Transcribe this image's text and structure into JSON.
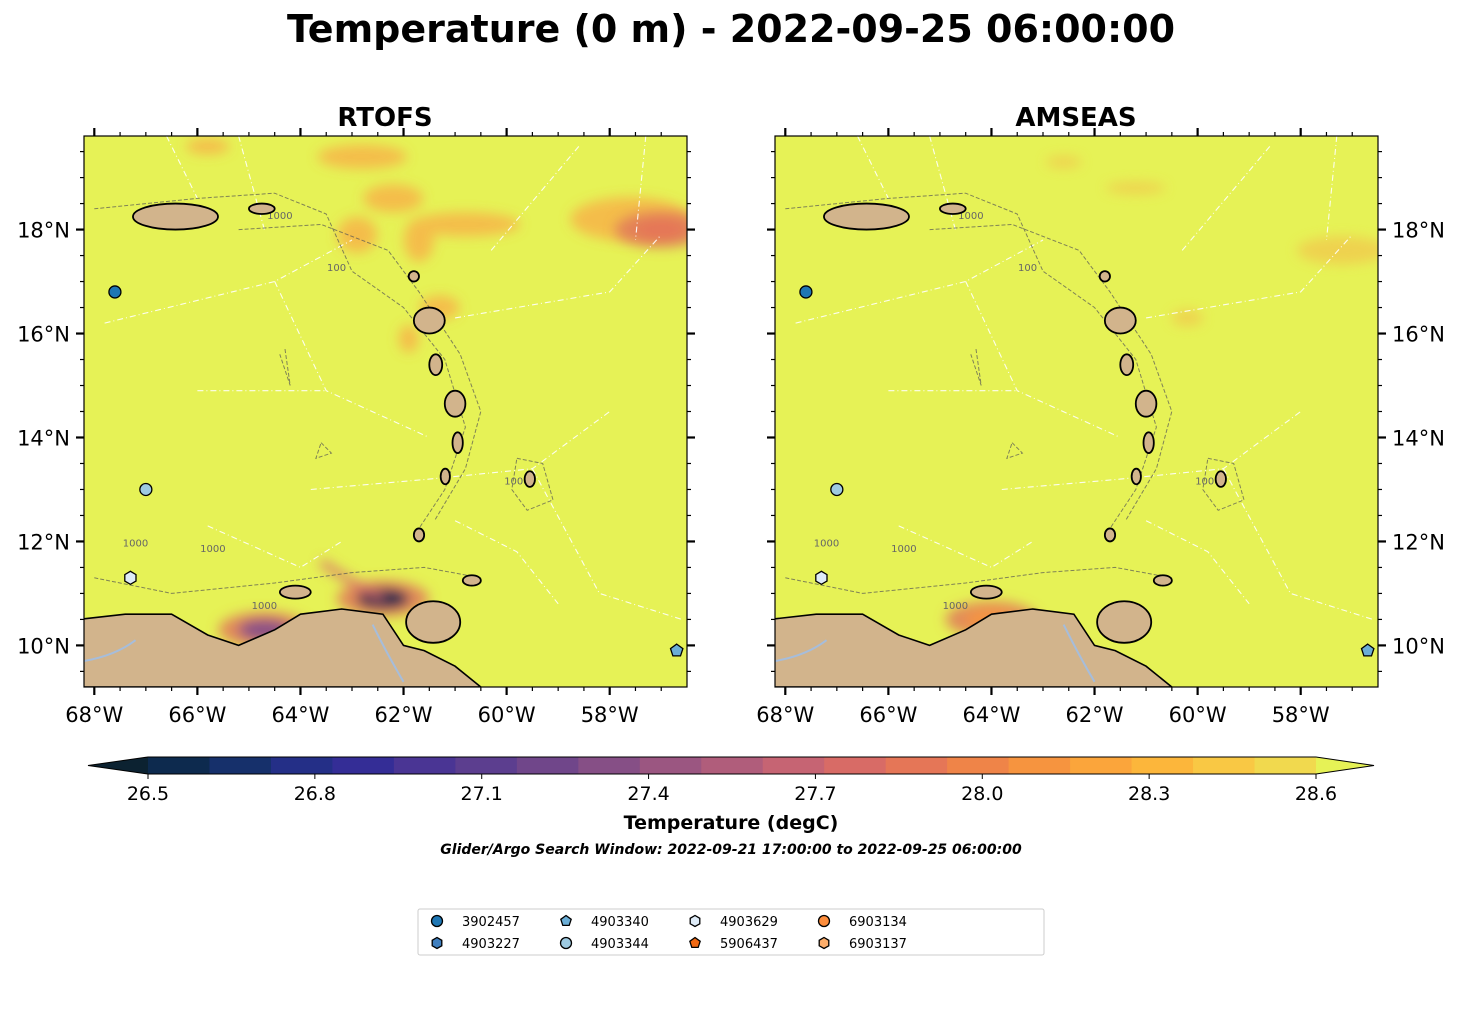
{
  "figure": {
    "title": "Temperature (0 m) - 2022-09-25 06:00:00",
    "search_window": "Glider/Argo Search Window: 2022-09-21 17:00:00 to 2022-09-25 06:00:00"
  },
  "chart_data": [
    {
      "type": "heatmap",
      "title": "RTOFS",
      "xlim": [
        -68.2,
        -56.5
      ],
      "ylim": [
        9.2,
        19.8
      ],
      "x_ticks": [
        -68,
        -66,
        -64,
        -62,
        -60,
        -58
      ],
      "x_tick_labels": [
        "68°W",
        "66°W",
        "64°W",
        "62°W",
        "60°W",
        "58°W"
      ],
      "y_ticks": [
        10,
        12,
        14,
        16,
        18
      ],
      "y_tick_labels": [
        "10°N",
        "12°N",
        "14°N",
        "16°N",
        "18°N"
      ],
      "y_tick_side": "left",
      "contour_labels": [
        "1000",
        "100",
        "1000",
        "1000",
        "1000",
        "1000"
      ],
      "cool_anomalies": [
        {
          "lon": -62.4,
          "lat": 10.9,
          "value": 26.5
        },
        {
          "lon": -64.7,
          "lat": 10.3,
          "value": 27.3
        },
        {
          "lon": -57.0,
          "lat": 18.0,
          "value": 27.8
        }
      ]
    },
    {
      "type": "heatmap",
      "title": "AMSEAS",
      "xlim": [
        -68.2,
        -56.5
      ],
      "ylim": [
        9.2,
        19.8
      ],
      "x_ticks": [
        -68,
        -66,
        -64,
        -62,
        -60,
        -58
      ],
      "x_tick_labels": [
        "68°W",
        "66°W",
        "64°W",
        "62°W",
        "60°W",
        "58°W"
      ],
      "y_ticks": [
        10,
        12,
        14,
        16,
        18
      ],
      "y_tick_labels": [
        "10°N",
        "12°N",
        "14°N",
        "16°N",
        "18°N"
      ],
      "y_tick_side": "right",
      "contour_labels": [
        "1000",
        "100",
        "1000",
        "1000",
        "1000",
        "1000"
      ],
      "cool_anomalies": [
        {
          "lon": -64.0,
          "lat": 10.5,
          "value": 28.0
        }
      ]
    }
  ],
  "observations": [
    {
      "id": "3902457",
      "marker": "circle",
      "color": "#1f77b4",
      "lon": -67.6,
      "lat": 16.8
    },
    {
      "id": "4903344",
      "marker": "circle",
      "color": "#9ecae1",
      "lon": -67.0,
      "lat": 13.0
    },
    {
      "id": "4903629",
      "marker": "hexagon",
      "color": "#deebf7",
      "lon": -67.3,
      "lat": 11.3
    },
    {
      "id": "4903340",
      "marker": "pentagon",
      "color": "#6baed6",
      "lon": -56.7,
      "lat": 9.9
    }
  ],
  "colorbar": {
    "label": "Temperature (degC)",
    "min": 26.4,
    "max": 28.6,
    "tick_values": [
      26.5,
      26.8,
      27.1,
      27.4,
      27.7,
      28.0,
      28.3,
      28.6
    ],
    "tick_labels": [
      "26.5",
      "26.8",
      "27.1",
      "27.4",
      "27.7",
      "28.0",
      "28.3",
      "28.6"
    ],
    "colors": [
      "#0c2231",
      "#0d2a4e",
      "#16306b",
      "#242f87",
      "#342d96",
      "#4a3594",
      "#5c3e8f",
      "#70468a",
      "#864f86",
      "#9b5681",
      "#b05d7b",
      "#c66473",
      "#d86b66",
      "#e57657",
      "#ef8448",
      "#f6943f",
      "#fba53b",
      "#fcb63b",
      "#f9c844",
      "#f1d94e",
      "#e6f256"
    ]
  },
  "legend": {
    "entries": [
      {
        "label": "3902457",
        "marker": "circle",
        "color": "#1f77b4"
      },
      {
        "label": "4903227",
        "marker": "hexagon",
        "color": "#3f7fbf"
      },
      {
        "label": "4903340",
        "marker": "pentagon",
        "color": "#6baed6"
      },
      {
        "label": "4903344",
        "marker": "circle",
        "color": "#9ecae1"
      },
      {
        "label": "4903629",
        "marker": "hexagon",
        "color": "#deebf7"
      },
      {
        "label": "5906437",
        "marker": "pentagon",
        "color": "#f16913"
      },
      {
        "label": "6903134",
        "marker": "circle",
        "color": "#fd8d3c"
      },
      {
        "label": "6903137",
        "marker": "hexagon",
        "color": "#fdae6b"
      }
    ]
  },
  "colors": {
    "ocean": "#e6f256",
    "land": "#d2b48c",
    "warm_patch": "#f6b84a"
  }
}
